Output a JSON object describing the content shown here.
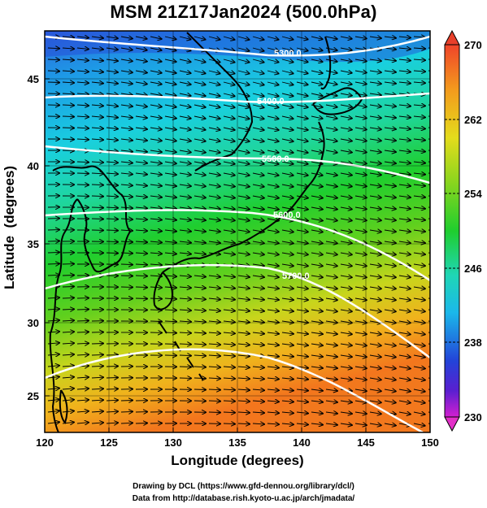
{
  "title": "MSM 21Z17Jan2024 (500.0hPa)",
  "map": {
    "xlabel": "Longitude (degrees)",
    "ylabel": "Latitude  (degrees)",
    "lon_range": [
      120,
      150
    ],
    "lat_range": [
      22.4,
      47.6
    ],
    "x_ticks": [
      "120",
      "125",
      "130",
      "135",
      "140",
      "145",
      "150"
    ],
    "y_ticks": [
      "25",
      "30",
      "35",
      "40",
      "45"
    ],
    "contour_labels": [
      "5300.0",
      "5400.0",
      "5500.0",
      "5600.0",
      "5700.0"
    ],
    "field": "temperature (K)",
    "wind_vectors": "arrows, predominantly westerly"
  },
  "colorbar": {
    "min": 230,
    "max": 270,
    "labels": [
      "230",
      "238",
      "246",
      "254",
      "262",
      "270"
    ]
  },
  "colors": {
    "cold": "#1a4fd6",
    "cool": "#17c6e0",
    "mid": "#1ec91e",
    "warm": "#e7d21b",
    "hot": "#f07a1e",
    "contour": "#ffffff",
    "coastline": "#000000",
    "arrow": "#000000"
  },
  "credit": {
    "line1": "Drawing by DCL (https://www.gfd-dennou.org/library/dcl/)",
    "line2": "Data from http://database.rish.kyoto-u.ac.jp/arch/jmadata/"
  }
}
